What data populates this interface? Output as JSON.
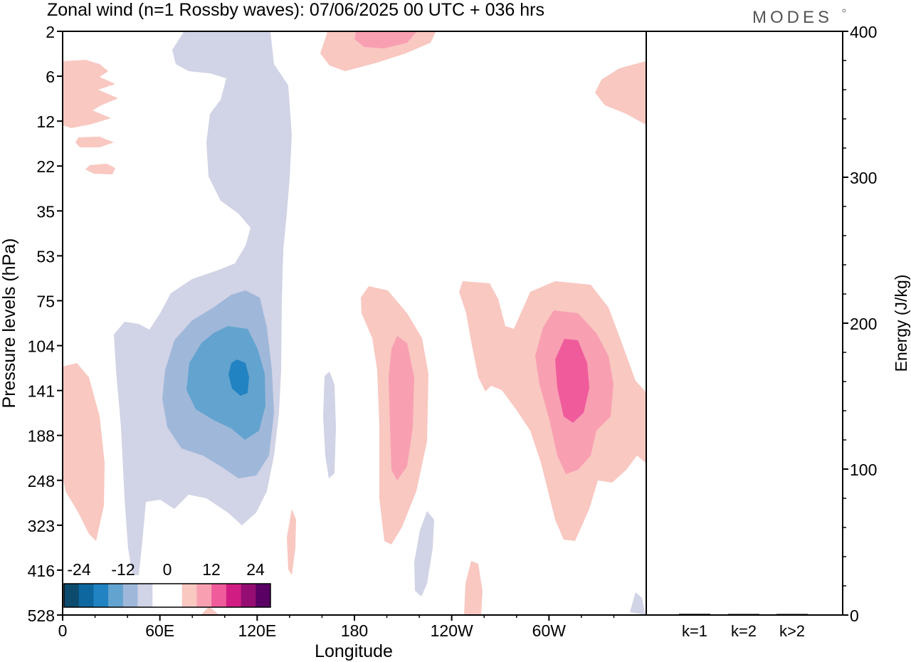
{
  "title": "Zonal wind (n=1 Rossby waves):  07/06/2025  00 UTC  + 036 hrs",
  "brand": "MODES",
  "colorbar": {
    "labels": [
      "-24",
      "-12",
      "0",
      "12",
      "24"
    ],
    "colors": [
      "#0c4a6e",
      "#0e679e",
      "#2283c2",
      "#63a3cf",
      "#9fb8da",
      "#d1d3e6",
      "#ffffff",
      "#ffffff",
      "#f9c8c1",
      "#f8a0b2",
      "#ef5b9b",
      "#d11d83",
      "#950d72",
      "#5a0065"
    ]
  },
  "chart_data": [
    {
      "type": "heatmap",
      "title": "Zonal wind (n=1 Rossby waves):  07/06/2025  00 UTC  + 036 hrs",
      "xlabel": "Longitude",
      "ylabel": "Pressure levels (hPa)",
      "x_ticks": [
        "0",
        "60E",
        "120E",
        "180",
        "120W",
        "60W"
      ],
      "x_tick_degrees": [
        0,
        60,
        120,
        180,
        240,
        300
      ],
      "xlim": [
        0,
        360
      ],
      "y_ticks": [
        "2",
        "6",
        "12",
        "22",
        "35",
        "53",
        "75",
        "104",
        "141",
        "188",
        "248",
        "323",
        "416",
        "528"
      ],
      "y_scale": "model levels (non-uniform)",
      "grid": false,
      "contour_levels": [
        -24,
        -12,
        0,
        12,
        24
      ],
      "features": [
        {
          "sign": "negative",
          "lon_range": [
            35,
            135
          ],
          "p_range": [
            2,
            528
          ],
          "peak_lon": 109,
          "peak_p": 130,
          "peak_class": "-12 to -18"
        },
        {
          "sign": "positive",
          "lon_range": [
            195,
            225
          ],
          "p_range": [
            75,
            323
          ],
          "peak_lon": 208,
          "peak_p": 160,
          "peak_class": "6 to 12"
        },
        {
          "sign": "positive",
          "lon_range": [
            245,
            360
          ],
          "p_range": [
            75,
            323
          ],
          "peak_lon": 312,
          "peak_p": 130,
          "peak_class": "12 to 18"
        },
        {
          "sign": "positive",
          "lon_range": [
            0,
            25
          ],
          "p_range": [
            5,
            20
          ],
          "peak_class": "0 to 6"
        },
        {
          "sign": "positive",
          "lon_range": [
            160,
            230
          ],
          "p_range": [
            2,
            6
          ],
          "peak_class": "6 to 12"
        },
        {
          "sign": "positive",
          "lon_range": [
            0,
            25
          ],
          "p_range": [
            120,
            330
          ],
          "peak_class": "0 to 6"
        }
      ]
    },
    {
      "type": "bar",
      "categories": [
        "k=1",
        "k=2",
        "k>2"
      ],
      "values": [
        0.8,
        0.3,
        0.5
      ],
      "ylabel": "Energy (J/kg)",
      "ylim": [
        0,
        400
      ],
      "y_ticks": [
        "0",
        "100",
        "200",
        "300",
        "400"
      ]
    }
  ]
}
